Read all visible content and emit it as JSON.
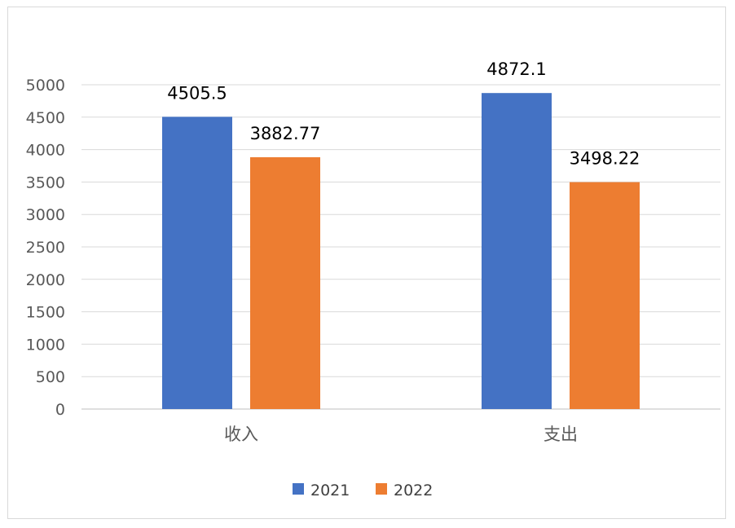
{
  "chart_data": {
    "type": "bar",
    "categories": [
      "收入",
      "支出"
    ],
    "series": [
      {
        "name": "2021",
        "values": [
          4505.5,
          4872.1
        ],
        "labels": [
          "4505.5",
          "4872.1"
        ],
        "color": "#4472C4"
      },
      {
        "name": "2022",
        "values": [
          3882.77,
          3498.22
        ],
        "labels": [
          "3882.77",
          "3498.22"
        ],
        "color": "#ED7D31"
      }
    ],
    "title": "",
    "xlabel": "",
    "ylabel": "",
    "ylim": [
      0,
      5000
    ],
    "yticks": [
      0,
      500,
      1000,
      1500,
      2000,
      2500,
      3000,
      3500,
      4000,
      4500,
      5000
    ],
    "grid": true,
    "legend": "bottom"
  }
}
